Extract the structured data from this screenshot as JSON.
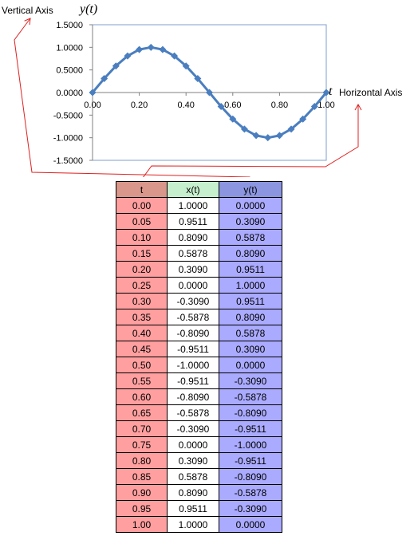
{
  "callouts": {
    "vertical_axis": "Vertical Axis",
    "horizontal_axis": "Horizontal Axis"
  },
  "axis_vars": {
    "y": "y(t)",
    "x": "t"
  },
  "chart_data": {
    "type": "line",
    "x": [
      0.0,
      0.05,
      0.1,
      0.15,
      0.2,
      0.25,
      0.3,
      0.35,
      0.4,
      0.45,
      0.5,
      0.55,
      0.6,
      0.65,
      0.7,
      0.75,
      0.8,
      0.85,
      0.9,
      0.95,
      1.0
    ],
    "series": [
      {
        "values": [
          0.0,
          0.309,
          0.5878,
          0.809,
          0.9511,
          1.0,
          0.9511,
          0.809,
          0.5878,
          0.309,
          0.0,
          -0.309,
          -0.5878,
          -0.809,
          -0.9511,
          -1.0,
          -0.9511,
          -0.809,
          -0.5878,
          -0.309,
          0.0
        ]
      }
    ],
    "xlim": [
      0,
      1
    ],
    "ylim": [
      -1.5,
      1.5
    ],
    "x_ticks": [
      "0.00",
      "0.20",
      "0.40",
      "0.60",
      "0.80",
      "1.00"
    ],
    "y_ticks": [
      "1.5000",
      "1.0000",
      "0.5000",
      "0.0000",
      "-0.5000",
      "-1.0000",
      "-1.5000"
    ],
    "colors": {
      "series": "#4a7ebf",
      "plot_border": "#7f9fcf",
      "callout_arrow": "#e02020"
    },
    "grid": false,
    "marker": "diamond"
  },
  "table": {
    "headers": [
      "t",
      "x(t)",
      "y(t)"
    ],
    "rows": [
      [
        "0.00",
        "1.0000",
        "0.0000"
      ],
      [
        "0.05",
        "0.9511",
        "0.3090"
      ],
      [
        "0.10",
        "0.8090",
        "0.5878"
      ],
      [
        "0.15",
        "0.5878",
        "0.8090"
      ],
      [
        "0.20",
        "0.3090",
        "0.9511"
      ],
      [
        "0.25",
        "0.0000",
        "1.0000"
      ],
      [
        "0.30",
        "-0.3090",
        "0.9511"
      ],
      [
        "0.35",
        "-0.5878",
        "0.8090"
      ],
      [
        "0.40",
        "-0.8090",
        "0.5878"
      ],
      [
        "0.45",
        "-0.9511",
        "0.3090"
      ],
      [
        "0.50",
        "-1.0000",
        "0.0000"
      ],
      [
        "0.55",
        "-0.9511",
        "-0.3090"
      ],
      [
        "0.60",
        "-0.8090",
        "-0.5878"
      ],
      [
        "0.65",
        "-0.5878",
        "-0.8090"
      ],
      [
        "0.70",
        "-0.3090",
        "-0.9511"
      ],
      [
        "0.75",
        "0.0000",
        "-1.0000"
      ],
      [
        "0.80",
        "0.3090",
        "-0.9511"
      ],
      [
        "0.85",
        "0.5878",
        "-0.8090"
      ],
      [
        "0.90",
        "0.8090",
        "-0.5878"
      ],
      [
        "0.95",
        "0.9511",
        "-0.3090"
      ],
      [
        "1.00",
        "1.0000",
        "0.0000"
      ]
    ]
  }
}
